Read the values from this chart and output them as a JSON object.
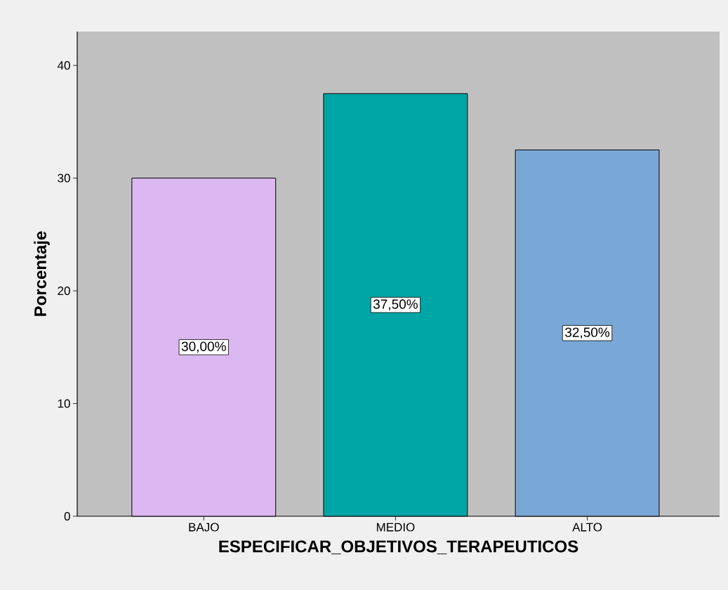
{
  "chart_data": {
    "type": "bar",
    "xlabel": "ESPECIFICAR_OBJETIVOS_TERAPEUTICOS",
    "ylabel": "Porcentaje",
    "categories": [
      "BAJO",
      "MEDIO",
      "ALTO"
    ],
    "values": [
      30,
      37.5,
      32.5
    ],
    "value_labels": [
      "30,00%",
      "37,50%",
      "32,50%"
    ],
    "colors": [
      "#dcb8f2",
      "#00a5a5",
      "#7aa8d6"
    ],
    "ylim": [
      0,
      43
    ],
    "yticks": [
      0,
      10,
      20,
      30,
      40
    ]
  }
}
